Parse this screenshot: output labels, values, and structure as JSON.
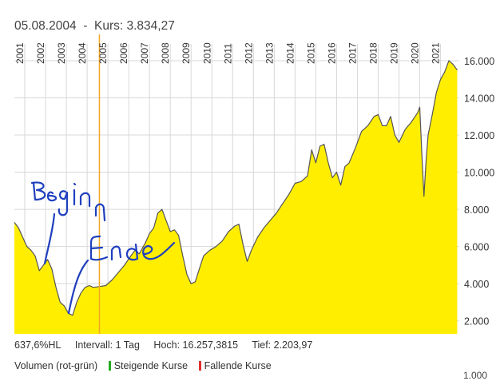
{
  "header": {
    "date": "05.08.2004",
    "separator": "-",
    "price_label": "Kurs: 3.834,27"
  },
  "stats": {
    "hl": "637,6%HL",
    "interval": "Intervall: 1 Tag",
    "high": "Hoch: 16.257,3815",
    "low": "Tief:  2.203,97"
  },
  "legend": {
    "volume": "Volumen (rot-grün)",
    "rising": "Steigende Kurse",
    "falling": "Fallende Kurse",
    "rising_color": "#22aa22",
    "falling_color": "#e03030"
  },
  "volume_axis_tick": "1.000",
  "annotations": {
    "begin": "Beginn",
    "end": "Ende",
    "ink_color": "#1f3fbf"
  },
  "chart_data": {
    "type": "area",
    "fill_color": "#ffee00",
    "line_color": "#555555",
    "cursor_color": "#f5a623",
    "cursor_x": 2004.59,
    "xlim": [
      2000.5,
      2021.9
    ],
    "ylim": [
      1300,
      16900
    ],
    "x_tick_labels": [
      "2001",
      "2002",
      "2003",
      "2004",
      "2005",
      "2006",
      "2007",
      "2008",
      "2009",
      "2010",
      "2011",
      "2012",
      "2013",
      "2014",
      "2015",
      "2016",
      "2017",
      "2018",
      "2019",
      "2020",
      "2021"
    ],
    "x_tick_values": [
      2001,
      2002,
      2003,
      2004,
      2005,
      2006,
      2007,
      2008,
      2009,
      2010,
      2011,
      2012,
      2013,
      2014,
      2015,
      2016,
      2017,
      2018,
      2019,
      2020,
      2021
    ],
    "y_tick_labels": [
      "2.000",
      "4.000",
      "6.000",
      "8.000",
      "10.000",
      "12.000",
      "14.000",
      "16.000"
    ],
    "y_tick_values": [
      2000,
      4000,
      6000,
      8000,
      10000,
      12000,
      14000,
      16000
    ],
    "grid": true,
    "series": [
      {
        "x": [
          2000.5,
          2000.7,
          2000.9,
          2001.1,
          2001.3,
          2001.5,
          2001.7,
          2001.9,
          2002.1,
          2002.3,
          2002.5,
          2002.7,
          2002.9,
          2003.1,
          2003.3,
          2003.5,
          2003.7,
          2003.9,
          2004.1,
          2004.3,
          2004.6,
          2004.9,
          2005.2,
          2005.5,
          2005.8,
          2006.1,
          2006.3,
          2006.5,
          2006.8,
          2007.0,
          2007.2,
          2007.4,
          2007.6,
          2007.8,
          2008.0,
          2008.2,
          2008.4,
          2008.6,
          2008.8,
          2009.0,
          2009.2,
          2009.4,
          2009.6,
          2009.9,
          2010.2,
          2010.5,
          2010.8,
          2011.1,
          2011.3,
          2011.5,
          2011.7,
          2011.9,
          2012.2,
          2012.5,
          2012.8,
          2013.1,
          2013.4,
          2013.7,
          2014.0,
          2014.3,
          2014.6,
          2014.8,
          2015.0,
          2015.2,
          2015.4,
          2015.6,
          2015.8,
          2016.0,
          2016.2,
          2016.4,
          2016.6,
          2016.9,
          2017.2,
          2017.5,
          2017.8,
          2018.0,
          2018.2,
          2018.4,
          2018.6,
          2018.8,
          2019.0,
          2019.3,
          2019.6,
          2019.9,
          2020.0,
          2020.1,
          2020.2,
          2020.3,
          2020.4,
          2020.6,
          2020.8,
          2021.0,
          2021.2,
          2021.4,
          2021.6,
          2021.8
        ],
        "y": [
          7300,
          7000,
          6500,
          6000,
          5800,
          5500,
          4700,
          5000,
          5300,
          4800,
          3800,
          3000,
          2800,
          2400,
          2300,
          3000,
          3500,
          3800,
          3900,
          3800,
          3850,
          3900,
          4200,
          4600,
          5000,
          5500,
          5800,
          5600,
          6200,
          6700,
          7000,
          7800,
          8000,
          7400,
          6800,
          6900,
          6600,
          5500,
          4500,
          4000,
          4100,
          4800,
          5500,
          5800,
          6000,
          6300,
          6800,
          7100,
          7200,
          6100,
          5200,
          5800,
          6500,
          7000,
          7400,
          7800,
          8300,
          8800,
          9400,
          9500,
          9800,
          11200,
          10500,
          11400,
          11500,
          10500,
          9700,
          10000,
          9300,
          10300,
          10500,
          11300,
          12200,
          12500,
          13000,
          13100,
          12500,
          12500,
          13000,
          12000,
          11600,
          12300,
          12700,
          13200,
          13500,
          11000,
          8700,
          10600,
          12000,
          13100,
          14300,
          15000,
          15400,
          16000,
          15800,
          15500
        ]
      }
    ]
  }
}
